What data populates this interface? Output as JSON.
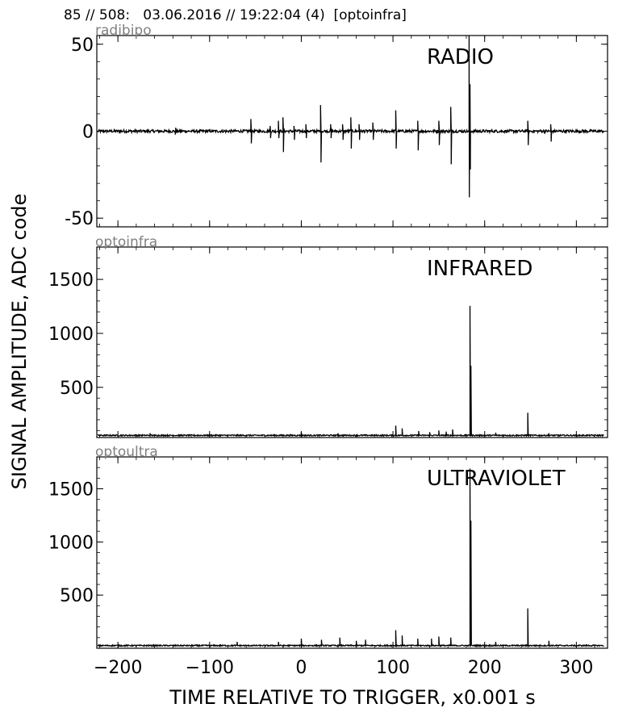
{
  "header": {
    "title": "85 // 508:   03.06.2016 // 19:22:04 (4)  [optoinfra]"
  },
  "figure": {
    "ylabel": "SIGNAL AMPLITUDE,  ADC code",
    "xlabel": "TIME RELATIVE TO TRIGGER,   x0.001 s"
  },
  "chart_data": [
    {
      "type": "line",
      "panel_id": "radio",
      "channel": "radibipo",
      "annotation": "RADIO",
      "xlim": [
        -223,
        334
      ],
      "ylim": [
        -55,
        55
      ],
      "yticks": [
        -50,
        0,
        50
      ],
      "ytick_labels": [
        "-50",
        "0",
        "50"
      ],
      "baseline": 0,
      "noise": 0.8,
      "spikes": [
        {
          "x": -137,
          "y": 2
        },
        {
          "x": -137.5,
          "y": -2
        },
        {
          "x": -55,
          "y": 7
        },
        {
          "x": -54.5,
          "y": -7
        },
        {
          "x": -34,
          "y": 3
        },
        {
          "x": -33.5,
          "y": -4
        },
        {
          "x": -25,
          "y": 6
        },
        {
          "x": -24.5,
          "y": -4
        },
        {
          "x": -20,
          "y": 8
        },
        {
          "x": -19.5,
          "y": -12
        },
        {
          "x": -8,
          "y": 3
        },
        {
          "x": -7.5,
          "y": -5
        },
        {
          "x": 5,
          "y": 4
        },
        {
          "x": 5.5,
          "y": -4
        },
        {
          "x": 21,
          "y": 15
        },
        {
          "x": 21.5,
          "y": -18
        },
        {
          "x": 32,
          "y": 4
        },
        {
          "x": 32.5,
          "y": -4
        },
        {
          "x": 45,
          "y": 4
        },
        {
          "x": 45.5,
          "y": -5
        },
        {
          "x": 54,
          "y": 8
        },
        {
          "x": 54.5,
          "y": -10
        },
        {
          "x": 63,
          "y": 4
        },
        {
          "x": 63.5,
          "y": -5
        },
        {
          "x": 78,
          "y": 5
        },
        {
          "x": 78.5,
          "y": -5
        },
        {
          "x": 103,
          "y": 12
        },
        {
          "x": 103.5,
          "y": -10
        },
        {
          "x": 127,
          "y": 6
        },
        {
          "x": 127.5,
          "y": -11
        },
        {
          "x": 150,
          "y": 6
        },
        {
          "x": 150.5,
          "y": -8
        },
        {
          "x": 163,
          "y": 14
        },
        {
          "x": 163.5,
          "y": -19
        },
        {
          "x": 183,
          "y": 55
        },
        {
          "x": 183.3,
          "y": -38
        },
        {
          "x": 184,
          "y": 27
        },
        {
          "x": 184.4,
          "y": -22
        },
        {
          "x": 247,
          "y": 6
        },
        {
          "x": 247.5,
          "y": -8
        },
        {
          "x": 272,
          "y": 4
        },
        {
          "x": 272.5,
          "y": -6
        }
      ]
    },
    {
      "type": "line",
      "panel_id": "infrared",
      "channel": "optoinfra",
      "annotation": "INFRARED",
      "xlim": [
        -223,
        334
      ],
      "ylim": [
        35,
        1800
      ],
      "yticks": [
        500,
        1000,
        1500
      ],
      "ytick_labels": [
        "500",
        "1000",
        "1500"
      ],
      "baseline": 55,
      "noise": 6,
      "spikes": [
        {
          "x": -165,
          "y": 75
        },
        {
          "x": 0,
          "y": 85
        },
        {
          "x": 40,
          "y": 75
        },
        {
          "x": 103,
          "y": 145
        },
        {
          "x": 110,
          "y": 120
        },
        {
          "x": 128,
          "y": 95
        },
        {
          "x": 140,
          "y": 85
        },
        {
          "x": 150,
          "y": 100
        },
        {
          "x": 158,
          "y": 90
        },
        {
          "x": 165,
          "y": 110
        },
        {
          "x": 184,
          "y": 1255
        },
        {
          "x": 185,
          "y": 700
        },
        {
          "x": 212,
          "y": 80
        },
        {
          "x": 247,
          "y": 265
        },
        {
          "x": 270,
          "y": 75
        }
      ]
    },
    {
      "type": "line",
      "panel_id": "ultraviolet",
      "channel": "optoultra",
      "annotation": "ULTRAVIOLET",
      "xlim": [
        -223,
        334
      ],
      "ylim": [
        0,
        1800
      ],
      "yticks": [
        500,
        1000,
        1500
      ],
      "ytick_labels": [
        "500",
        "1000",
        "1500"
      ],
      "baseline": 25,
      "noise": 6,
      "spikes": [
        {
          "x": -70,
          "y": 60
        },
        {
          "x": -25,
          "y": 60
        },
        {
          "x": 0,
          "y": 90
        },
        {
          "x": 22,
          "y": 80
        },
        {
          "x": 42,
          "y": 100
        },
        {
          "x": 60,
          "y": 70
        },
        {
          "x": 70,
          "y": 80
        },
        {
          "x": 103,
          "y": 170
        },
        {
          "x": 110,
          "y": 120
        },
        {
          "x": 127,
          "y": 90
        },
        {
          "x": 142,
          "y": 90
        },
        {
          "x": 150,
          "y": 110
        },
        {
          "x": 163,
          "y": 100
        },
        {
          "x": 184,
          "y": 1690
        },
        {
          "x": 185,
          "y": 1200
        },
        {
          "x": 212,
          "y": 60
        },
        {
          "x": 247,
          "y": 375
        },
        {
          "x": 270,
          "y": 70
        }
      ]
    }
  ],
  "xaxis": {
    "ticks": [
      -200,
      -100,
      0,
      100,
      200,
      300
    ],
    "tick_labels": [
      "−200",
      "−100",
      "0",
      "100",
      "200",
      "300"
    ]
  }
}
